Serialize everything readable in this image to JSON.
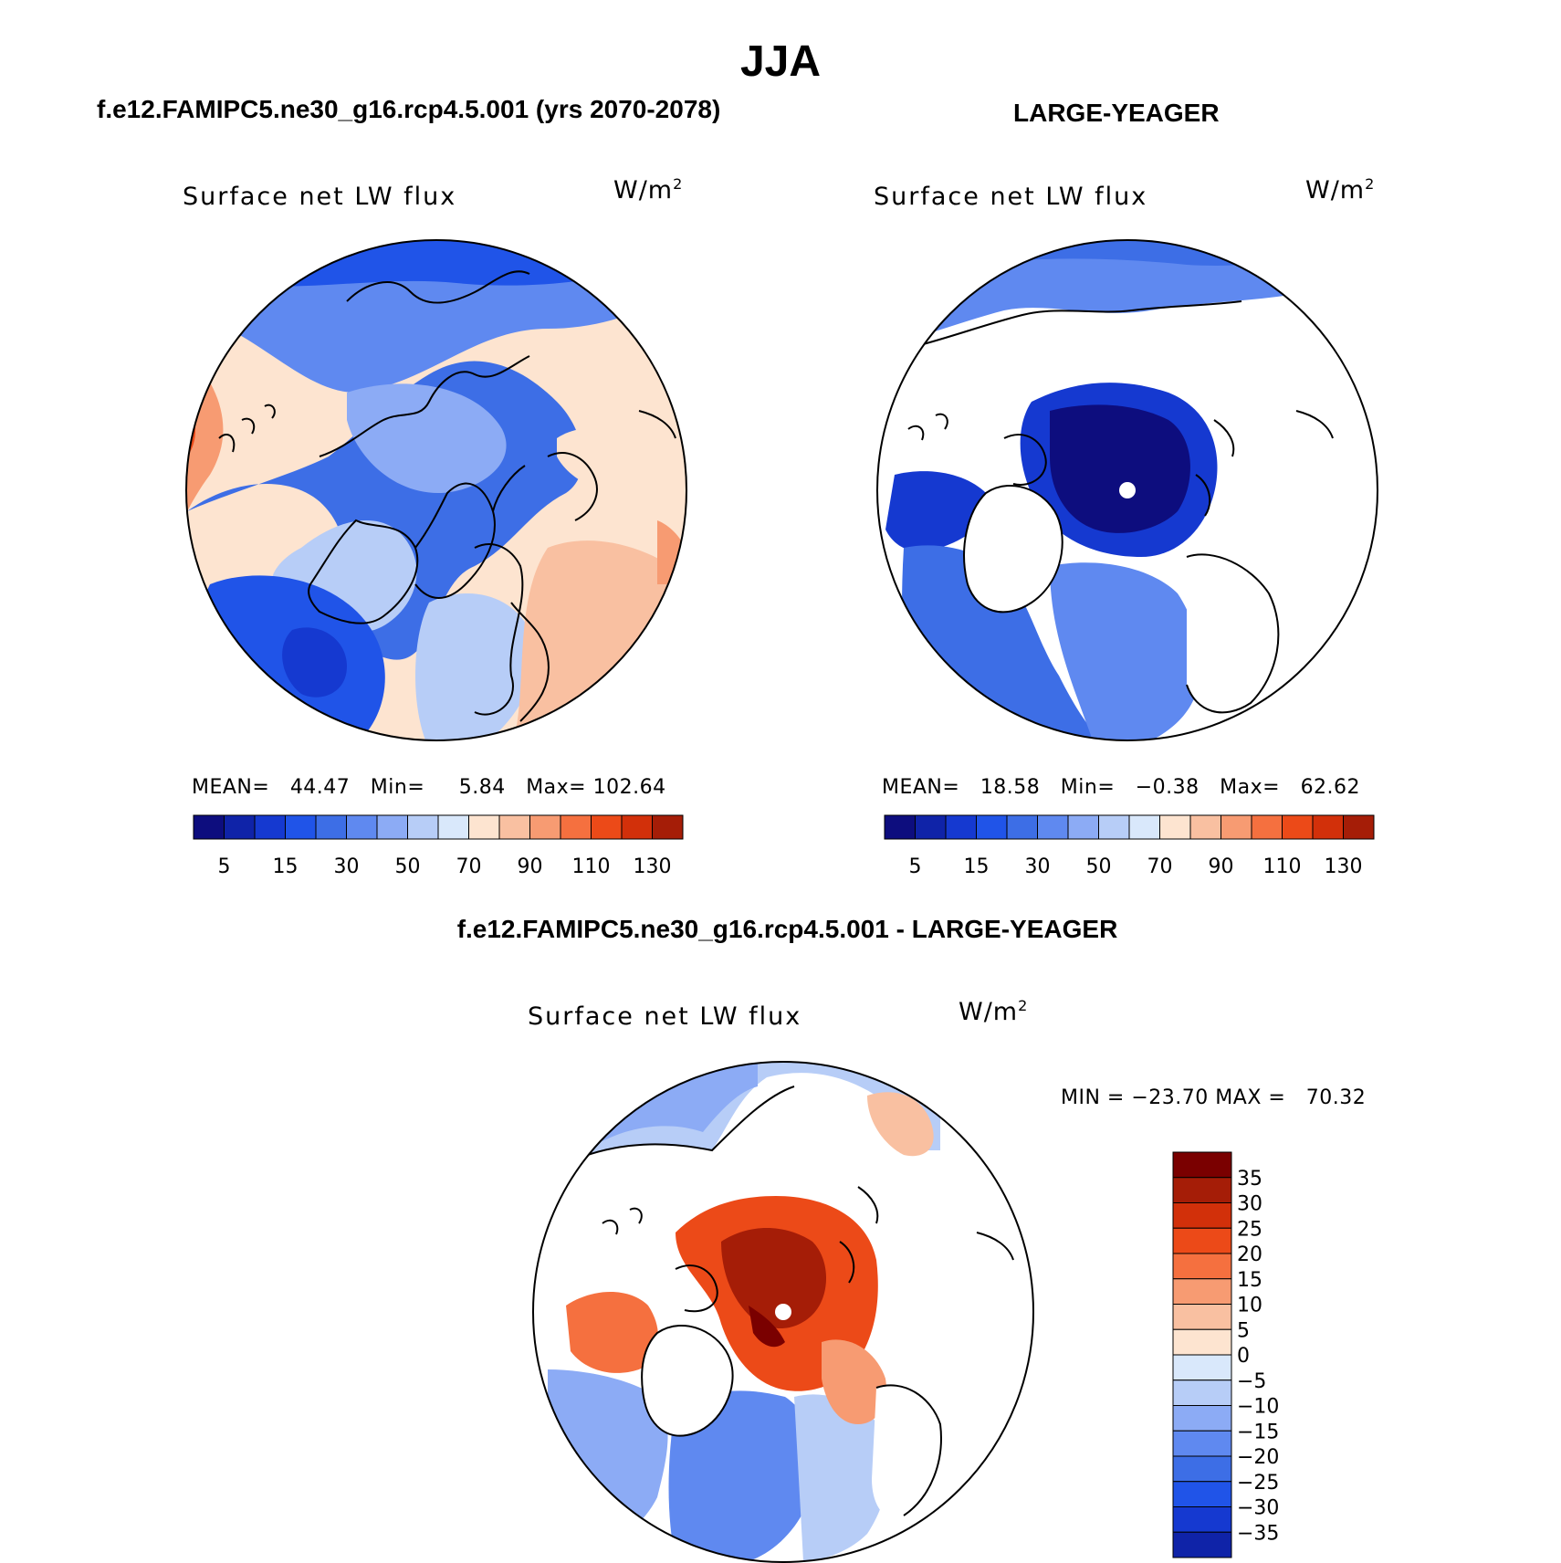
{
  "figure": {
    "main_title": "JJA",
    "left_run_title": "f.e12.FAMIPC5.ne30_g16.rcp4.5.001 (yrs 2070-2078)",
    "right_run_title": "LARGE-YEAGER",
    "diff_title": "f.e12.FAMIPC5.ne30_g16.rcp4.5.001 - LARGE-YEAGER"
  },
  "chart_data": [
    {
      "type": "heatmap",
      "projection": "north polar stereographic",
      "title": "Surface net LW flux",
      "units_base": "W/m",
      "units_exp": "2",
      "stats": {
        "mean_label": "MEAN=",
        "mean": "44.47",
        "min_label": "Min=",
        "min": "5.84",
        "max_label": "Max=",
        "max": "102.64"
      },
      "colorbar": {
        "orientation": "horizontal",
        "levels": [
          5,
          10,
          15,
          20,
          30,
          40,
          50,
          60,
          70,
          80,
          90,
          100,
          110,
          120,
          130
        ],
        "tick_labels": [
          "5",
          "15",
          "30",
          "50",
          "70",
          "90",
          "110",
          "130"
        ]
      }
    },
    {
      "type": "heatmap",
      "projection": "north polar stereographic",
      "title": "Surface net LW flux",
      "units_base": "W/m",
      "units_exp": "2",
      "stats": {
        "mean_label": "MEAN=",
        "mean": "18.58",
        "min_label": "Min=",
        "min": "−0.38",
        "max_label": "Max=",
        "max": "62.62"
      },
      "colorbar": {
        "orientation": "horizontal",
        "levels": [
          5,
          10,
          15,
          20,
          30,
          40,
          50,
          60,
          70,
          80,
          90,
          100,
          110,
          120,
          130
        ],
        "tick_labels": [
          "5",
          "15",
          "30",
          "50",
          "70",
          "90",
          "110",
          "130"
        ]
      }
    },
    {
      "type": "heatmap",
      "projection": "north polar stereographic",
      "title": "Surface net LW flux",
      "units_base": "W/m",
      "units_exp": "2",
      "stats": {
        "min_label": "MIN =",
        "min": "−23.70",
        "max_label": "MAX =",
        "max": "70.32"
      },
      "colorbar": {
        "orientation": "vertical",
        "levels": [
          35,
          30,
          25,
          20,
          15,
          10,
          5,
          0,
          -5,
          -10,
          -15,
          -20,
          -25,
          -30,
          -35
        ],
        "tick_labels": [
          "35",
          "30",
          "25",
          "20",
          "15",
          "10",
          "5",
          "0",
          "−5",
          "−10",
          "−15",
          "−20",
          "−25",
          "−30",
          "−35"
        ]
      }
    }
  ],
  "palettes": {
    "abs_colors": [
      "#0d0d7e",
      "#0f23a8",
      "#1539d0",
      "#2054e8",
      "#3d6ee6",
      "#5f89f0",
      "#8cabf5",
      "#b7cdf7",
      "#d9e8fb",
      "#fde4d0",
      "#f9c0a1",
      "#f79b72",
      "#f5703f",
      "#ec4a18",
      "#d2300a",
      "#a51d07",
      "#7a0000"
    ],
    "diff_colors": [
      "#7a0000",
      "#a51d07",
      "#d2300a",
      "#ec4a18",
      "#f5703f",
      "#f79b72",
      "#f9c0a1",
      "#fde4d0",
      "#d9e8fb",
      "#b7cdf7",
      "#8cabf5",
      "#5f89f0",
      "#3d6ee6",
      "#2054e8",
      "#1539d0",
      "#0f23a8",
      "#0d0d7e"
    ]
  }
}
